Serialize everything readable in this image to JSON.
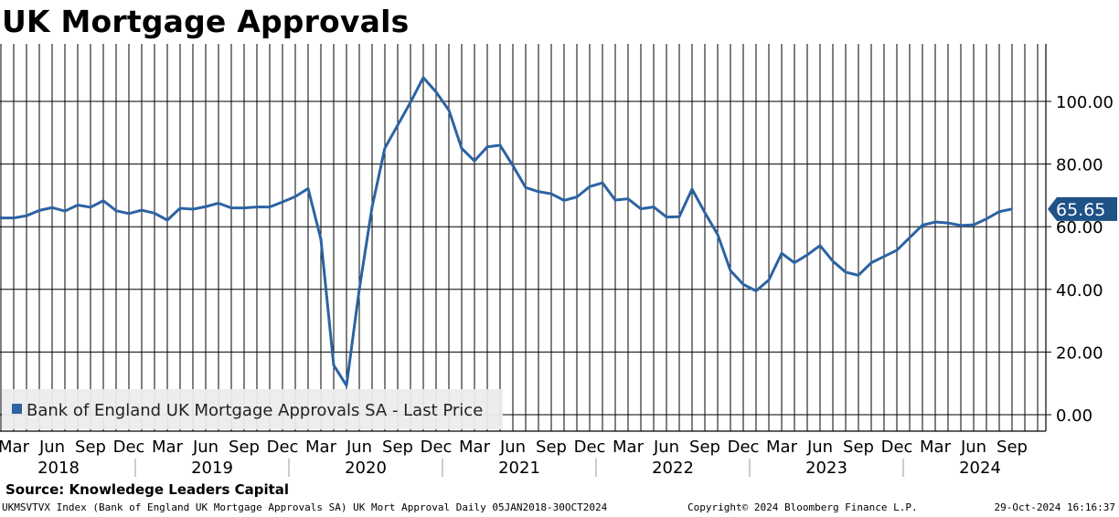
{
  "title": "UK Mortgage Approvals",
  "source": "Source: Knowledege Leaders Capital",
  "footer": {
    "left": "UKMSVTVX Index (Bank of England UK Mortgage Approvals SA) UK Mort Approval  Daily 05JAN2018-30OCT2024",
    "middle": "Copyright© 2024 Bloomberg Finance L.P.",
    "right": "29-Oct-2024 16:16:37"
  },
  "colors": {
    "line": "#2c63a3",
    "grid": "#000000",
    "last_value_bg": "#1f5286",
    "legend_bg": "#ececec"
  },
  "chart_data": {
    "type": "line",
    "title": "UK Mortgage Approvals",
    "last_value_label": "65.65",
    "legend": {
      "label": "Bank of England UK Mortgage Approvals SA - Last Price",
      "placement": "bottom-left"
    },
    "y_axis": {
      "position": "right",
      "ylim": [
        -2,
        118
      ],
      "ticks": [
        "0.00",
        "20.00",
        "40.00",
        "60.00",
        "80.00",
        "100.00"
      ]
    },
    "x_axis": {
      "month_labels": [
        "Mar",
        "Jun",
        "Sep",
        "Dec",
        "Mar",
        "Jun",
        "Sep",
        "Dec",
        "Mar",
        "Jun",
        "Sep",
        "Dec",
        "Mar",
        "Jun",
        "Sep",
        "Dec",
        "Mar",
        "Jun",
        "Sep",
        "Dec",
        "Mar",
        "Jun",
        "Sep",
        "Dec",
        "Mar",
        "Jun",
        "Sep"
      ],
      "year_labels": [
        "2018",
        "2019",
        "2020",
        "2021",
        "2022",
        "2023",
        "2024"
      ]
    },
    "grid": true,
    "series": [
      {
        "name": "Bank of England UK Mortgage Approvals SA - Last Price",
        "x": [
          "2018-01",
          "2018-02",
          "2018-03",
          "2018-04",
          "2018-05",
          "2018-06",
          "2018-07",
          "2018-08",
          "2018-09",
          "2018-10",
          "2018-11",
          "2018-12",
          "2019-01",
          "2019-02",
          "2019-03",
          "2019-04",
          "2019-05",
          "2019-06",
          "2019-07",
          "2019-08",
          "2019-09",
          "2019-10",
          "2019-11",
          "2019-12",
          "2020-01",
          "2020-02",
          "2020-03",
          "2020-04",
          "2020-05",
          "2020-06",
          "2020-07",
          "2020-08",
          "2020-09",
          "2020-10",
          "2020-11",
          "2020-12",
          "2021-01",
          "2021-02",
          "2021-03",
          "2021-04",
          "2021-05",
          "2021-06",
          "2021-07",
          "2021-08",
          "2021-09",
          "2021-10",
          "2021-11",
          "2021-12",
          "2022-01",
          "2022-02",
          "2022-03",
          "2022-04",
          "2022-05",
          "2022-06",
          "2022-07",
          "2022-08",
          "2022-09",
          "2022-10",
          "2022-11",
          "2022-12",
          "2023-01",
          "2023-02",
          "2023-03",
          "2023-04",
          "2023-05",
          "2023-06",
          "2023-07",
          "2023-08",
          "2023-09",
          "2023-10",
          "2023-11",
          "2023-12",
          "2024-01",
          "2024-02",
          "2024-03",
          "2024-04",
          "2024-05",
          "2024-06",
          "2024-07",
          "2024-08",
          "2024-09"
        ],
        "values": [
          66.0,
          62.8,
          62.8,
          63.5,
          65.2,
          66.1,
          65.0,
          66.9,
          66.2,
          68.3,
          65.1,
          64.2,
          65.3,
          64.3,
          62.1,
          65.9,
          65.6,
          66.4,
          67.5,
          66.0,
          66.0,
          66.3,
          66.3,
          67.9,
          69.6,
          72.2,
          56.0,
          15.8,
          9.3,
          40.0,
          66.3,
          85.1,
          92.4,
          99.7,
          107.6,
          103.0,
          97.2,
          85.0,
          81.0,
          85.5,
          86.0,
          79.5,
          72.5,
          71.2,
          70.5,
          68.4,
          69.5,
          72.8,
          74.0,
          68.5,
          68.9,
          65.7,
          66.3,
          63.1,
          63.2,
          72.0,
          64.5,
          57.5,
          46.0,
          41.6,
          39.5,
          43.0,
          51.5,
          48.5,
          51.0,
          54.0,
          49.0,
          45.5,
          44.5,
          48.5,
          50.5,
          52.5,
          56.5,
          60.5,
          61.5,
          61.2,
          60.4,
          60.6,
          62.5,
          64.8,
          65.65
        ]
      }
    ]
  }
}
